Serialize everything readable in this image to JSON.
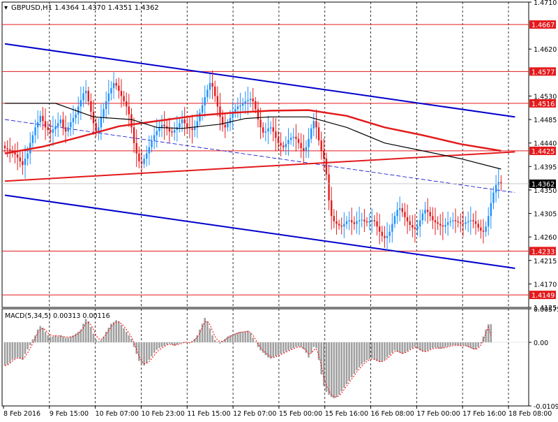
{
  "window": {
    "symbol": "GBPUSD,H1",
    "ohlc": "1.4364 1.4370 1.4351 1.4362"
  },
  "chart_data": [
    {
      "type": "candlestick",
      "symbol": "GBPUSD",
      "timeframe": "H1",
      "ohlc_last": {
        "open": 1.4364,
        "high": 1.437,
        "low": 1.4351,
        "close": 1.4362
      },
      "ylim": [
        1.4125,
        1.471
      ],
      "y_tick_labels": [
        "1.4710",
        "1.4620",
        "1.4530",
        "1.4485",
        "1.4440",
        "1.4395",
        "1.4350",
        "1.4305",
        "1.4260",
        "1.4215",
        "1.4170",
        "1.4125"
      ],
      "x_tick_labels": [
        "8 Feb 2016",
        "9 Feb 15:00",
        "10 Feb 07:00",
        "10 Feb 23:00",
        "11 Feb 15:00",
        "12 Feb 07:00",
        "15 Feb 00:00",
        "15 Feb 16:00",
        "16 Feb 08:00",
        "17 Feb 00:00",
        "17 Feb 16:00",
        "18 Feb 08:00"
      ],
      "horizontal_levels": [
        {
          "price": 1.4667,
          "label": "1.4667",
          "color": "#e31a1c"
        },
        {
          "price": 1.4577,
          "label": "1.4577",
          "color": "#e31a1c"
        },
        {
          "price": 1.4516,
          "label": "1.4516",
          "color": "#e31a1c"
        },
        {
          "price": 1.4425,
          "label": "1.4425",
          "color": "#e31a1c"
        },
        {
          "price": 1.4233,
          "label": "1.4233",
          "color": "#e31a1c"
        },
        {
          "price": 1.4149,
          "label": "1.4149",
          "color": "#e31a1c"
        }
      ],
      "current_price": {
        "price": 1.4362,
        "label": "1.4362"
      },
      "trend_lines": [
        {
          "name": "channel-upper",
          "color": "#0000cc",
          "from": [
            0,
            1.463
          ],
          "to": [
            196,
            1.449
          ]
        },
        {
          "name": "channel-lower",
          "color": "#0000cc",
          "from": [
            0,
            1.434
          ],
          "to": [
            196,
            1.42
          ]
        },
        {
          "name": "channel-middle",
          "color": "#0000cc",
          "dashed": true,
          "from": [
            0,
            1.4485
          ],
          "to": [
            196,
            1.4345
          ]
        },
        {
          "name": "red-support",
          "color": "#e31a1c",
          "from": [
            0,
            1.4367
          ],
          "to": [
            196,
            1.4423
          ]
        }
      ],
      "moving_averages": [
        {
          "color": "#e31a1c",
          "points": [
            [
              0,
              1.442
            ],
            [
              15,
              1.4433
            ],
            [
              30,
              1.4452
            ],
            [
              45,
              1.4472
            ],
            [
              60,
              1.4482
            ],
            [
              75,
              1.4492
            ],
            [
              90,
              1.4498
            ],
            [
              105,
              1.4502
            ],
            [
              120,
              1.4503
            ],
            [
              135,
              1.4492
            ],
            [
              150,
              1.447
            ],
            [
              165,
              1.4455
            ],
            [
              180,
              1.4438
            ],
            [
              196,
              1.4425
            ]
          ]
        },
        {
          "color": "#000000",
          "points": [
            [
              0,
              1.4516
            ],
            [
              20,
              1.4516
            ],
            [
              35,
              1.449
            ],
            [
              50,
              1.4485
            ],
            [
              60,
              1.447
            ],
            [
              70,
              1.4468
            ],
            [
              85,
              1.4476
            ],
            [
              95,
              1.4487
            ],
            [
              105,
              1.449
            ],
            [
              120,
              1.449
            ],
            [
              135,
              1.447
            ],
            [
              150,
              1.444
            ],
            [
              165,
              1.4425
            ],
            [
              180,
              1.441
            ],
            [
              196,
              1.439
            ]
          ]
        }
      ],
      "candles_close": [
        1.443,
        1.4428,
        1.4425,
        1.4422,
        1.4418,
        1.4412,
        1.4405,
        1.4398,
        1.441,
        1.442,
        1.444,
        1.4455,
        1.447,
        1.448,
        1.4492,
        1.4482,
        1.447,
        1.4465,
        1.446,
        1.4466,
        1.4472,
        1.4478,
        1.4485,
        1.447,
        1.4462,
        1.447,
        1.448,
        1.4488,
        1.4495,
        1.451,
        1.4522,
        1.4535,
        1.454,
        1.452,
        1.45,
        1.4478,
        1.4462,
        1.447,
        1.449,
        1.4505,
        1.452,
        1.4535,
        1.4545,
        1.4555,
        1.455,
        1.454,
        1.453,
        1.452,
        1.451,
        1.4495,
        1.447,
        1.444,
        1.442,
        1.4405,
        1.44,
        1.441,
        1.442,
        1.4432,
        1.4445,
        1.4455,
        1.4463,
        1.447,
        1.4475,
        1.4472,
        1.4468,
        1.4462,
        1.446,
        1.4465,
        1.447,
        1.4478,
        1.4485,
        1.4478,
        1.447,
        1.4468,
        1.4465,
        1.447,
        1.4482,
        1.4498,
        1.4512,
        1.4528,
        1.4542,
        1.4555,
        1.4548,
        1.453,
        1.451,
        1.449,
        1.4475,
        1.447,
        1.4478,
        1.4488,
        1.4498,
        1.4505,
        1.451,
        1.4512,
        1.4515,
        1.452,
        1.4522,
        1.4525,
        1.452,
        1.4505,
        1.4485,
        1.447,
        1.446,
        1.4462,
        1.4468,
        1.447,
        1.4462,
        1.445,
        1.444,
        1.4435,
        1.4432,
        1.4438,
        1.4446,
        1.445,
        1.4452,
        1.4448,
        1.444,
        1.443,
        1.4425,
        1.4432,
        1.4448,
        1.4468,
        1.4482,
        1.447,
        1.4445,
        1.4425,
        1.441,
        1.438,
        1.433,
        1.43,
        1.429,
        1.4285,
        1.4282,
        1.428,
        1.4285,
        1.429,
        1.4292,
        1.4288,
        1.4285,
        1.429,
        1.4292,
        1.4293,
        1.429,
        1.4288,
        1.429,
        1.4292,
        1.429,
        1.428,
        1.427,
        1.4262,
        1.4258,
        1.4262,
        1.427,
        1.4285,
        1.43,
        1.4312,
        1.4315,
        1.4308,
        1.4298,
        1.429,
        1.4283,
        1.4278,
        1.4275,
        1.428,
        1.4292,
        1.4305,
        1.4312,
        1.4308,
        1.43,
        1.4292,
        1.4288,
        1.4285,
        1.4282,
        1.428,
        1.4283,
        1.4288,
        1.429,
        1.4292,
        1.429,
        1.4288,
        1.4286,
        1.4285,
        1.4288,
        1.429,
        1.4292,
        1.429,
        1.4285,
        1.4278,
        1.4272,
        1.427,
        1.428,
        1.43,
        1.4325,
        1.4345,
        1.436,
        1.4365,
        1.4362
      ]
    },
    {
      "type": "histogram",
      "indicator": "MACD",
      "label": "MACD(5,34,5) 0.00313 0.00116",
      "ylim": [
        -0.01092,
        0.00575
      ],
      "y_tick_labels": [
        "0.00575",
        "0.00",
        "-0.01092"
      ],
      "histogram_values": [
        -0.004,
        -0.0038,
        -0.0035,
        -0.003,
        -0.0028,
        -0.0026,
        -0.0028,
        -0.003,
        -0.002,
        -0.0012,
        -0.0005,
        0.0005,
        0.0012,
        0.0022,
        0.0028,
        0.0025,
        0.0018,
        0.0012,
        0.001,
        0.001,
        0.0012,
        0.001,
        0.0012,
        0.001,
        0.0008,
        0.0008,
        0.001,
        0.0012,
        0.0015,
        0.0018,
        0.0022,
        0.0032,
        0.004,
        0.0036,
        0.0026,
        0.0015,
        0.0005,
        0.0002,
        0.0004,
        0.001,
        0.0018,
        0.0025,
        0.0032,
        0.0035,
        0.0038,
        0.0036,
        0.003,
        0.0024,
        0.0018,
        0.0012,
        0.0006,
        -0.0008,
        -0.002,
        -0.0032,
        -0.0038,
        -0.004,
        -0.0036,
        -0.003,
        -0.0024,
        -0.0018,
        -0.0013,
        -0.001,
        -0.0008,
        -0.0006,
        -0.0004,
        -0.0002,
        -0.0004,
        -0.0006,
        -0.0004,
        -0.0002,
        -0.0001,
        0.0001,
        0.0,
        -0.0001,
        0.0002,
        0.0006,
        0.0012,
        0.0022,
        0.0032,
        0.0042,
        0.0036,
        0.0024,
        0.0012,
        0.0004,
        0.0001,
        -0.0002,
        0.0002,
        0.0006,
        0.001,
        0.0012,
        0.0013,
        0.0015,
        0.0017,
        0.0018,
        0.0018,
        0.0019,
        0.002,
        0.0016,
        0.0008,
        0.0001,
        -0.0008,
        -0.0014,
        -0.0018,
        -0.0022,
        -0.0026,
        -0.0028,
        -0.0026,
        -0.0024,
        -0.0022,
        -0.002,
        -0.0018,
        -0.0016,
        -0.0014,
        -0.0012,
        -0.001,
        -0.0008,
        -0.0007,
        -0.0008,
        -0.0012,
        -0.0018,
        -0.0026,
        -0.0018,
        -0.0008,
        -0.001,
        -0.003,
        -0.0055,
        -0.0075,
        -0.0085,
        -0.009,
        -0.0094,
        -0.0096,
        -0.0094,
        -0.009,
        -0.0084,
        -0.0078,
        -0.0072,
        -0.0066,
        -0.006,
        -0.0054,
        -0.0048,
        -0.0043,
        -0.0038,
        -0.0034,
        -0.0031,
        -0.0029,
        -0.0028,
        -0.003,
        -0.0032,
        -0.0034,
        -0.0033,
        -0.003,
        -0.0026,
        -0.0022,
        -0.0018,
        -0.0014,
        -0.0016,
        -0.0018,
        -0.002,
        -0.0018,
        -0.0015,
        -0.0012,
        -0.001,
        -0.0008,
        -0.001,
        -0.0014,
        -0.0016,
        -0.0016,
        -0.0014,
        -0.0012,
        -0.001,
        -0.0009,
        -0.001,
        -0.0011,
        -0.001,
        -0.0008,
        -0.0007,
        -0.0006,
        -0.0005,
        -0.0005,
        -0.0006,
        -0.0006,
        -0.0005,
        -0.0006,
        -0.0008,
        -0.001,
        -0.0012,
        -0.0012,
        -0.0008,
        -0.0002,
        0.001,
        0.0022,
        0.0031,
        0.0031
      ],
      "signal_values": [
        -0.004,
        -0.0039,
        -0.0036,
        -0.0032,
        -0.0029,
        -0.0027,
        -0.0027,
        -0.0028,
        -0.0025,
        -0.0018,
        -0.001,
        -0.0002,
        0.0008,
        0.0016,
        0.0022,
        0.0024,
        0.0021,
        0.0016,
        0.0013,
        0.0011,
        0.0011,
        0.0011,
        0.0011,
        0.001,
        0.0009,
        0.0009,
        0.0009,
        0.001,
        0.0012,
        0.0015,
        0.0019,
        0.0025,
        0.0033,
        0.0034,
        0.003,
        0.0022,
        0.0012,
        0.0006,
        0.0005,
        0.0008,
        0.0014,
        0.002,
        0.0027,
        0.0031,
        0.0035,
        0.0035,
        0.0032,
        0.0028,
        0.0022,
        0.0016,
        0.0009,
        0.0,
        -0.0012,
        -0.0024,
        -0.0032,
        -0.0037,
        -0.0036,
        -0.0033,
        -0.0028,
        -0.0022,
        -0.0017,
        -0.0013,
        -0.001,
        -0.0007,
        -0.0005,
        -0.0003,
        -0.0004,
        -0.0005,
        -0.0004,
        -0.0003,
        -0.0002,
        0.0,
        0.0,
        -0.0001,
        0.0001,
        0.0004,
        0.0009,
        0.0016,
        0.0026,
        0.0035,
        0.0036,
        0.003,
        0.002,
        0.001,
        0.0004,
        0.0001,
        0.0002,
        0.0004,
        0.0008,
        0.001,
        0.0012,
        0.0014,
        0.0016,
        0.0017,
        0.0018,
        0.0018,
        0.0019,
        0.0017,
        0.0012,
        0.0005,
        -0.0003,
        -0.0009,
        -0.0014,
        -0.0018,
        -0.0022,
        -0.0025,
        -0.0026,
        -0.0025,
        -0.0023,
        -0.0021,
        -0.0019,
        -0.0017,
        -0.0015,
        -0.0013,
        -0.0011,
        -0.0009,
        -0.0008,
        -0.0008,
        -0.001,
        -0.0014,
        -0.002,
        -0.0019,
        -0.0013,
        -0.0011,
        -0.0022,
        -0.004,
        -0.006,
        -0.0074,
        -0.0083,
        -0.009,
        -0.0094,
        -0.0094,
        -0.0092,
        -0.0087,
        -0.0081,
        -0.0075,
        -0.0069,
        -0.0063,
        -0.0057,
        -0.0051,
        -0.0046,
        -0.0041,
        -0.0036,
        -0.0033,
        -0.003,
        -0.0029,
        -0.0029,
        -0.0031,
        -0.0033,
        -0.0033,
        -0.0031,
        -0.0028,
        -0.0024,
        -0.002,
        -0.0016,
        -0.0015,
        -0.0017,
        -0.0019,
        -0.0018,
        -0.0016,
        -0.0013,
        -0.0011,
        -0.0009,
        -0.0009,
        -0.0012,
        -0.0015,
        -0.0016,
        -0.0015,
        -0.0013,
        -0.0011,
        -0.001,
        -0.001,
        -0.001,
        -0.001,
        -0.0009,
        -0.0008,
        -0.0007,
        -0.0006,
        -0.0005,
        -0.0005,
        -0.0006,
        -0.0006,
        -0.0006,
        -0.0007,
        -0.0009,
        -0.0011,
        -0.0012,
        -0.001,
        -0.0005,
        0.0004,
        0.0016,
        0.0026,
        0.0012
      ]
    }
  ],
  "colors": {
    "background": "#ffffff",
    "grid": "#000000",
    "bull_candle": "#1e90ff",
    "bear_candle": "#e31a1c",
    "level_line": "#e31a1c",
    "channel": "#0000cc",
    "macd_hist": "#a0a0a0",
    "macd_signal": "#ff0000",
    "axis_text": "#000000"
  }
}
